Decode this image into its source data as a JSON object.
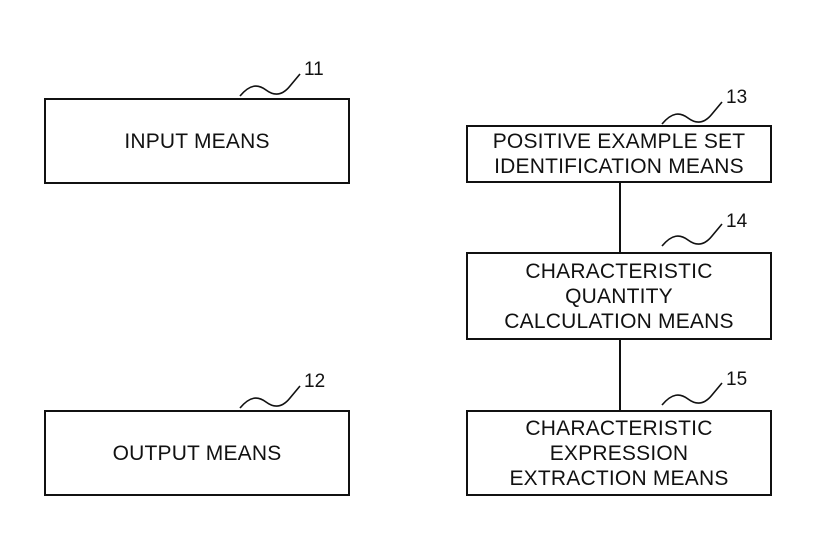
{
  "blocks": [
    {
      "ref": "11",
      "lines": [
        "INPUT MEANS"
      ]
    },
    {
      "ref": "12",
      "lines": [
        "OUTPUT MEANS"
      ]
    },
    {
      "ref": "13",
      "lines": [
        "POSITIVE EXAMPLE SET",
        "IDENTIFICATION MEANS"
      ]
    },
    {
      "ref": "14",
      "lines": [
        "CHARACTERISTIC",
        "QUANTITY",
        "CALCULATION MEANS"
      ]
    },
    {
      "ref": "15",
      "lines": [
        "CHARACTERISTIC",
        "EXPRESSION",
        "EXTRACTION MEANS"
      ]
    }
  ]
}
